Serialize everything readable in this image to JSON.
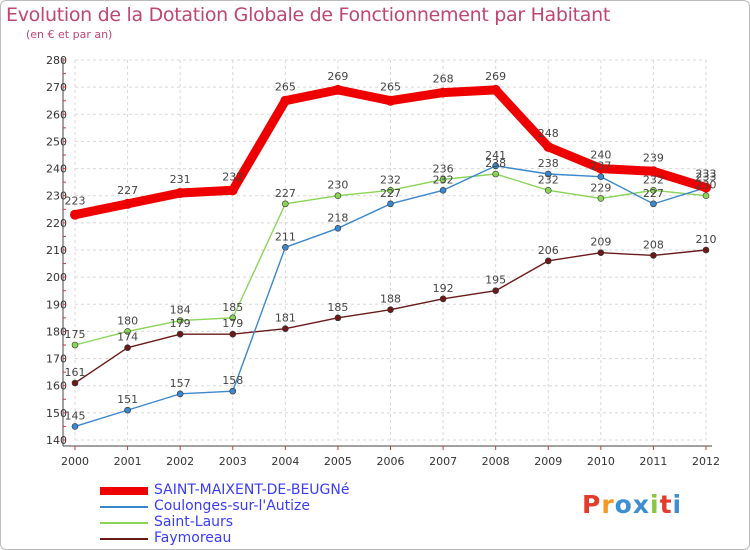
{
  "title": "Evolution de la Dotation Globale de Fonctionnement par Habitant",
  "subtitle": "(en € et par an)",
  "logo": {
    "text": "Proxiti",
    "colors": [
      "#e23c2d",
      "#f59a1f",
      "#3e8fd1",
      "#3e8fd1",
      "#8cc540",
      "#e23c2d",
      "#3e8fd1"
    ]
  },
  "chart_data": {
    "type": "line",
    "x": [
      "2000",
      "2001",
      "2002",
      "2003",
      "2004",
      "2005",
      "2006",
      "2007",
      "2008",
      "2009",
      "2010",
      "2011",
      "2012"
    ],
    "ylim": [
      140,
      280
    ],
    "yticks": [
      "140",
      "150",
      "160",
      "170",
      "180",
      "190",
      "200",
      "210",
      "220",
      "230",
      "240",
      "250",
      "260",
      "270",
      "280"
    ],
    "grid": true,
    "series": [
      {
        "name": "SAINT-MAIXENT-DE-BEUGNé",
        "color": "#ee0000",
        "values": [
          223,
          227,
          231,
          232,
          265,
          269,
          265,
          268,
          269,
          248,
          240,
          239,
          233
        ]
      },
      {
        "name": "Coulonges-sur-l'Autize",
        "color": "#3a87cc",
        "values": [
          145,
          151,
          157,
          158,
          211,
          218,
          227,
          232,
          241,
          238,
          237,
          227,
          233
        ]
      },
      {
        "name": "Saint-Laurs",
        "color": "#8ad456",
        "values": [
          175,
          180,
          184,
          185,
          227,
          230,
          232,
          236,
          238,
          232,
          229,
          232,
          230
        ]
      },
      {
        "name": "Faymoreau",
        "color": "#6b1a1a",
        "values": [
          161,
          174,
          179,
          179,
          181,
          185,
          188,
          192,
          195,
          206,
          209,
          208,
          210
        ]
      }
    ]
  }
}
